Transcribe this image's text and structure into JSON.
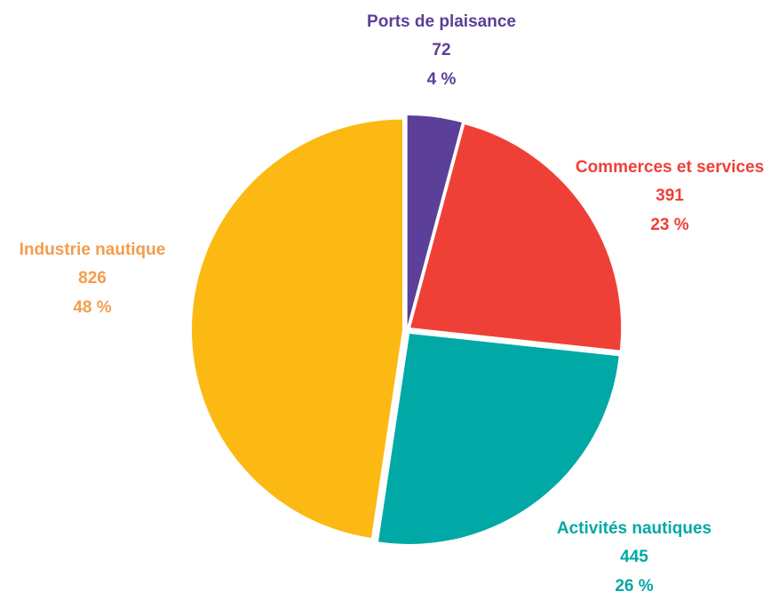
{
  "chart_data": {
    "type": "pie",
    "slices": [
      {
        "name": "Ports de plaisance",
        "value": 72,
        "percent": 4,
        "percent_label": "4 %",
        "color": "#5b3f98",
        "label_color": "#5b3f98"
      },
      {
        "name": "Commerces et services",
        "value": 391,
        "percent": 23,
        "percent_label": "23 %",
        "color": "#ef4037",
        "label_color": "#ef4037"
      },
      {
        "name": "Activités nautiques",
        "value": 445,
        "percent": 26,
        "percent_label": "26 %",
        "color": "#00a9a5",
        "label_color": "#00a9a5"
      },
      {
        "name": "Industrie nautique",
        "value": 826,
        "percent": 48,
        "percent_label": "48 %",
        "color": "#fdb913",
        "label_color": "#f39c4d"
      }
    ]
  }
}
